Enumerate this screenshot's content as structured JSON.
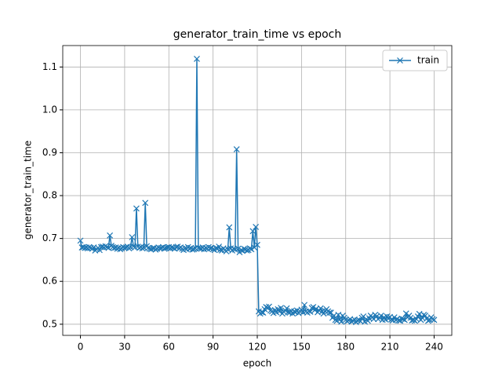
{
  "chart_data": {
    "type": "line",
    "title": "generator_train_time vs epoch",
    "xlabel": "epoch",
    "ylabel": "generator_train_time",
    "x": [
      0,
      1,
      2,
      3,
      4,
      5,
      6,
      7,
      8,
      9,
      10,
      11,
      12,
      13,
      14,
      15,
      16,
      17,
      18,
      19,
      20,
      21,
      22,
      23,
      24,
      25,
      26,
      27,
      28,
      29,
      30,
      31,
      32,
      33,
      34,
      35,
      36,
      37,
      38,
      39,
      40,
      41,
      42,
      43,
      44,
      45,
      46,
      47,
      48,
      49,
      50,
      51,
      52,
      53,
      54,
      55,
      56,
      57,
      58,
      59,
      60,
      61,
      62,
      63,
      64,
      65,
      66,
      67,
      68,
      69,
      70,
      71,
      72,
      73,
      74,
      75,
      76,
      77,
      78,
      79,
      80,
      81,
      82,
      83,
      84,
      85,
      86,
      87,
      88,
      89,
      90,
      91,
      92,
      93,
      94,
      95,
      96,
      97,
      98,
      99,
      100,
      101,
      102,
      103,
      104,
      105,
      106,
      107,
      108,
      109,
      110,
      111,
      112,
      113,
      114,
      115,
      116,
      117,
      118,
      119,
      120,
      121,
      122,
      123,
      124,
      125,
      126,
      127,
      128,
      129,
      130,
      131,
      132,
      133,
      134,
      135,
      136,
      137,
      138,
      139,
      140,
      141,
      142,
      143,
      144,
      145,
      146,
      147,
      148,
      149,
      150,
      151,
      152,
      153,
      154,
      155,
      156,
      157,
      158,
      159,
      160,
      161,
      162,
      163,
      164,
      165,
      166,
      167,
      168,
      169,
      170,
      171,
      172,
      173,
      174,
      175,
      176,
      177,
      178,
      179,
      180,
      181,
      182,
      183,
      184,
      185,
      186,
      187,
      188,
      189,
      190,
      191,
      192,
      193,
      194,
      195,
      196,
      197,
      198,
      199,
      200,
      201,
      202,
      203,
      204,
      205,
      206,
      207,
      208,
      209,
      210,
      211,
      212,
      213,
      214,
      215,
      216,
      217,
      218,
      219,
      220,
      221,
      222,
      223,
      224,
      225,
      226,
      227,
      228,
      229,
      230,
      231,
      232,
      233,
      234,
      235,
      236,
      237,
      238,
      239,
      240
    ],
    "series": [
      {
        "name": "train",
        "color": "#1f77b4",
        "values": [
          0.695,
          0.679,
          0.68,
          0.678,
          0.679,
          0.677,
          0.68,
          0.678,
          0.676,
          0.679,
          0.672,
          0.675,
          0.678,
          0.673,
          0.68,
          0.681,
          0.679,
          0.682,
          0.68,
          0.678,
          0.707,
          0.683,
          0.68,
          0.678,
          0.679,
          0.676,
          0.678,
          0.675,
          0.677,
          0.68,
          0.678,
          0.679,
          0.681,
          0.677,
          0.68,
          0.703,
          0.682,
          0.679,
          0.77,
          0.681,
          0.678,
          0.68,
          0.677,
          0.679,
          0.783,
          0.682,
          0.678,
          0.676,
          0.675,
          0.677,
          0.678,
          0.674,
          0.676,
          0.679,
          0.677,
          0.678,
          0.68,
          0.676,
          0.678,
          0.679,
          0.68,
          0.677,
          0.679,
          0.678,
          0.676,
          0.68,
          0.681,
          0.677,
          0.679,
          0.676,
          0.673,
          0.678,
          0.675,
          0.68,
          0.676,
          0.678,
          0.674,
          0.675,
          0.677,
          1.119,
          0.678,
          0.677,
          0.676,
          0.679,
          0.675,
          0.678,
          0.676,
          0.68,
          0.677,
          0.678,
          0.675,
          0.673,
          0.678,
          0.676,
          0.681,
          0.674,
          0.672,
          0.677,
          0.673,
          0.67,
          0.675,
          0.726,
          0.677,
          0.672,
          0.676,
          0.674,
          0.908,
          0.676,
          0.668,
          0.673,
          0.671,
          0.676,
          0.674,
          0.672,
          0.673,
          0.677,
          0.675,
          0.717,
          0.679,
          0.727,
          0.685,
          0.53,
          0.525,
          0.528,
          0.527,
          0.535,
          0.54,
          0.538,
          0.541,
          0.532,
          0.53,
          0.526,
          0.533,
          0.528,
          0.535,
          0.53,
          0.538,
          0.525,
          0.529,
          0.532,
          0.537,
          0.528,
          0.527,
          0.531,
          0.525,
          0.53,
          0.528,
          0.532,
          0.526,
          0.53,
          0.534,
          0.528,
          0.545,
          0.53,
          0.527,
          0.531,
          0.529,
          0.538,
          0.54,
          0.533,
          0.536,
          0.528,
          0.532,
          0.537,
          0.53,
          0.525,
          0.531,
          0.535,
          0.53,
          0.527,
          0.527,
          0.515,
          0.52,
          0.51,
          0.508,
          0.522,
          0.511,
          0.506,
          0.52,
          0.515,
          0.51,
          0.507,
          0.509,
          0.512,
          0.506,
          0.508,
          0.511,
          0.505,
          0.509,
          0.51,
          0.507,
          0.515,
          0.518,
          0.506,
          0.512,
          0.508,
          0.514,
          0.52,
          0.516,
          0.512,
          0.522,
          0.518,
          0.512,
          0.515,
          0.52,
          0.51,
          0.516,
          0.511,
          0.518,
          0.513,
          0.517,
          0.511,
          0.509,
          0.516,
          0.51,
          0.512,
          0.509,
          0.508,
          0.513,
          0.512,
          0.51,
          0.525,
          0.516,
          0.52,
          0.515,
          0.509,
          0.51,
          0.508,
          0.512,
          0.518,
          0.524,
          0.51,
          0.515,
          0.522,
          0.52,
          0.513,
          0.508,
          0.51,
          0.516,
          0.512,
          0.51
        ]
      }
    ],
    "xlim": [
      -12,
      252
    ],
    "xticks": [
      0,
      30,
      60,
      90,
      120,
      150,
      180,
      210,
      240
    ],
    "ylim": [
      0.474,
      1.15
    ],
    "yticks": [
      0.5,
      0.6,
      0.7,
      0.8,
      0.9,
      {
        "value": 1,
        "label": "1.0"
      },
      1.1
    ],
    "grid": true,
    "legend": "upper right"
  }
}
